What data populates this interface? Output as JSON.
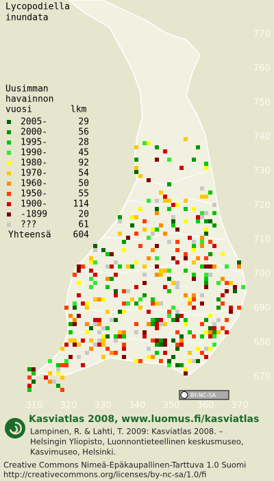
{
  "title": [
    "Lycopodiella",
    "inundata"
  ],
  "legend": {
    "header": [
      "Uusimman",
      "havainnon",
      "vuosi"
    ],
    "count_header": "lkm",
    "items": [
      {
        "label": "2005-",
        "count": 29,
        "color": "#006600"
      },
      {
        "label": "2000-",
        "count": 56,
        "color": "#009900"
      },
      {
        "label": "1995-",
        "count": 28,
        "color": "#00c800"
      },
      {
        "label": "1990-",
        "count": 45,
        "color": "#33e633"
      },
      {
        "label": "1980-",
        "count": 92,
        "color": "#ffff00"
      },
      {
        "label": "1970-",
        "count": 54,
        "color": "#ffc800"
      },
      {
        "label": "1960-",
        "count": 50,
        "color": "#ff8c00"
      },
      {
        "label": "1950-",
        "count": 55,
        "color": "#ff3c00"
      },
      {
        "label": "1900-",
        "count": 114,
        "color": "#d20000"
      },
      {
        "label": "-1899",
        "count": 20,
        "color": "#820000"
      },
      {
        "label": "???",
        "count": 61,
        "color": "#c8c8c8"
      }
    ],
    "total_label": "Yhteensä",
    "total": 604
  },
  "grid": {
    "northing": [
      770,
      760,
      750,
      740,
      730,
      720,
      710,
      700,
      690,
      680,
      670
    ],
    "easting": [
      310,
      320,
      330,
      340,
      350,
      360,
      370
    ]
  },
  "license_badge": "BY-NC-SA",
  "footer": {
    "site": "Kasviatlas 2008, www.luomus.fi/kasviatlas",
    "citation": [
      "Lampinen, R. & Lahti, T. 2009: Kasviatlas 2008. –",
      "Helsingin Yliopisto, Luonnontieteellinen keskusmuseo,",
      "Kasvimuseo, Helsinki."
    ],
    "license": [
      "Creative Commons Nimeä-Epäkaupallinen-Tarttuva 1.0 Suomi",
      "http://creativecommons.org/licenses/by-nc-sa/1.0/fi"
    ]
  }
}
